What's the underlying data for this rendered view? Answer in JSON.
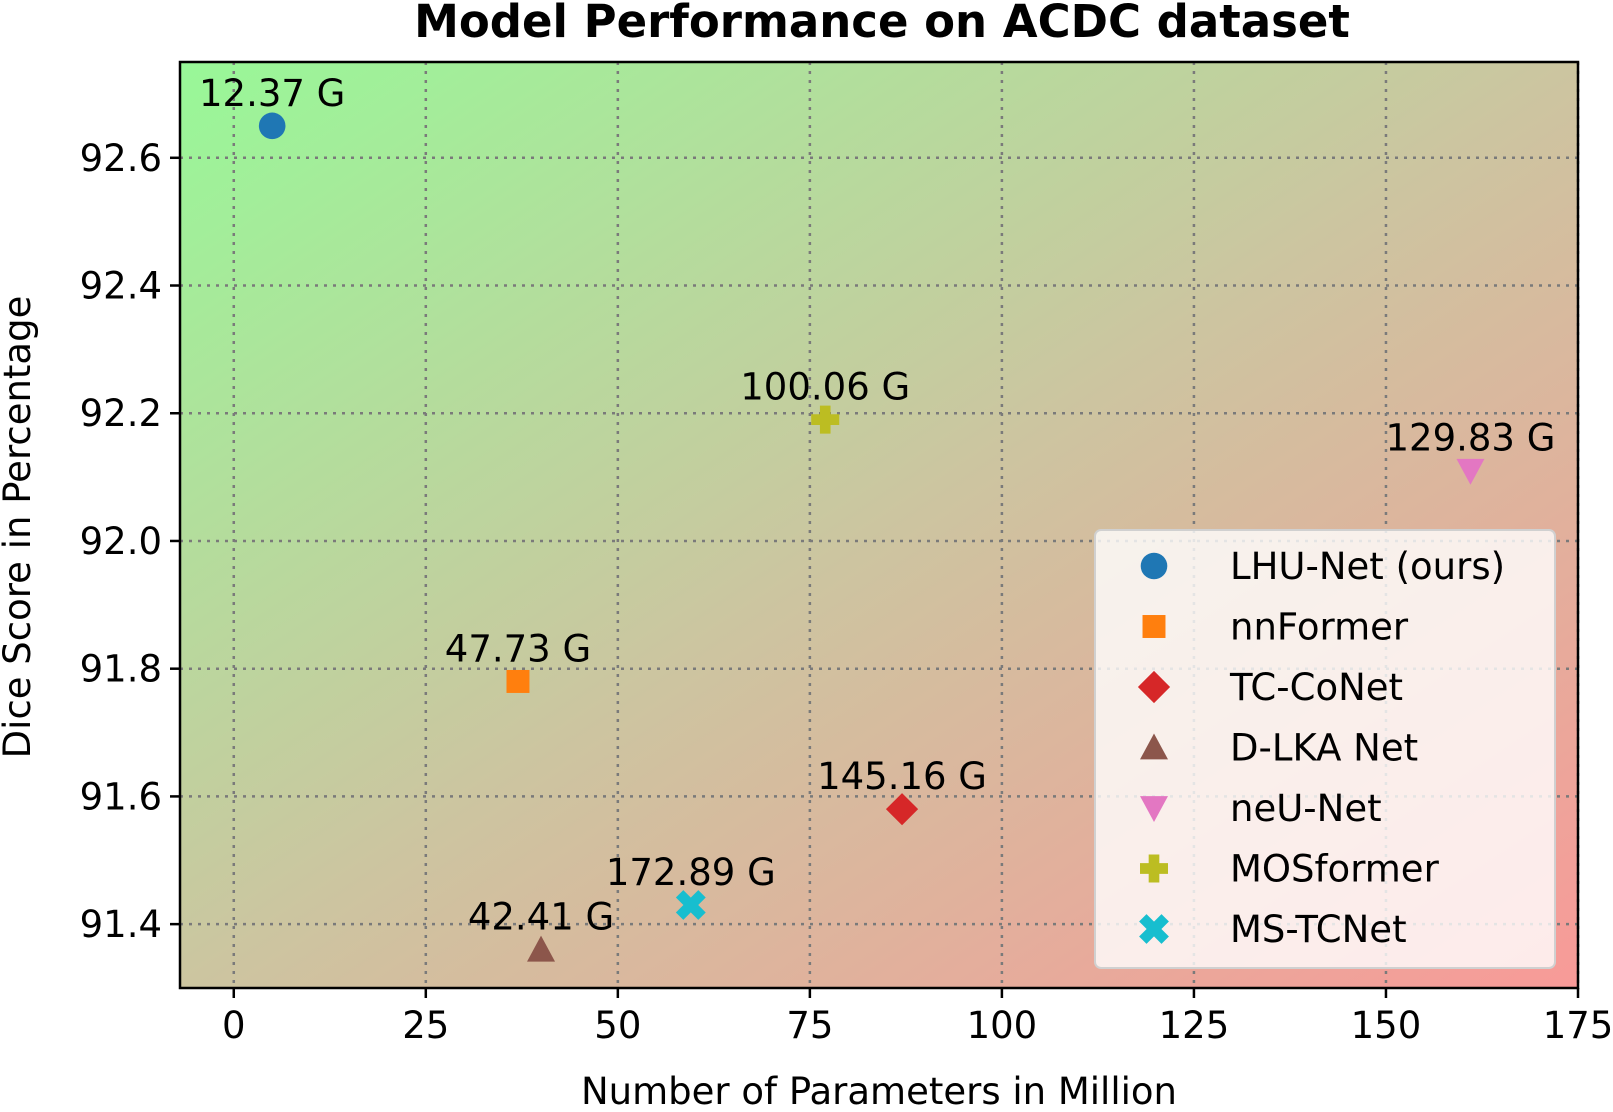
{
  "chart_data": {
    "type": "scatter",
    "title": "Model Performance on ACDC dataset",
    "xlabel": "Number of Parameters in Million",
    "ylabel": "Dice Score in Percentage",
    "xlim": [
      -7,
      175
    ],
    "ylim": [
      91.3,
      92.75
    ],
    "xticks": [
      0,
      25,
      50,
      75,
      100,
      125,
      150,
      175
    ],
    "yticks": [
      91.4,
      91.6,
      91.8,
      92.0,
      92.2,
      92.4,
      92.6
    ],
    "xtick_labels": [
      "0",
      "25",
      "50",
      "75",
      "100",
      "125",
      "150",
      "175"
    ],
    "ytick_labels": [
      "91.4",
      "91.6",
      "91.8",
      "92.0",
      "92.2",
      "92.4",
      "92.6"
    ],
    "grid": true,
    "legend_position": "lower-right",
    "background": "diagonal gradient from light green (top-left) to light red (bottom-right)",
    "series": [
      {
        "name": "LHU-Net (ours)",
        "x": 5,
        "y": 92.65,
        "label": "12.37 G",
        "marker": "circle",
        "color": "#1f77b4"
      },
      {
        "name": "nnFormer",
        "x": 37,
        "y": 91.78,
        "label": "47.73 G",
        "marker": "square",
        "color": "#ff7f0e"
      },
      {
        "name": "TC-CoNet",
        "x": 87,
        "y": 91.58,
        "label": "145.16 G",
        "marker": "diamond",
        "color": "#d62728"
      },
      {
        "name": "D-LKA Net",
        "x": 40,
        "y": 91.36,
        "label": "42.41 G",
        "marker": "triangle-up",
        "color": "#8c564b"
      },
      {
        "name": "neU-Net",
        "x": 161,
        "y": 92.11,
        "label": "129.83 G",
        "marker": "triangle-down",
        "color": "#e377c2"
      },
      {
        "name": "MOSformer",
        "x": 77,
        "y": 92.19,
        "label": "100.06 G",
        "marker": "plus",
        "color": "#bcbd22"
      },
      {
        "name": "MS-TCNet",
        "x": 59.5,
        "y": 91.43,
        "label": "172.89 G",
        "marker": "x",
        "color": "#17becf"
      }
    ]
  }
}
